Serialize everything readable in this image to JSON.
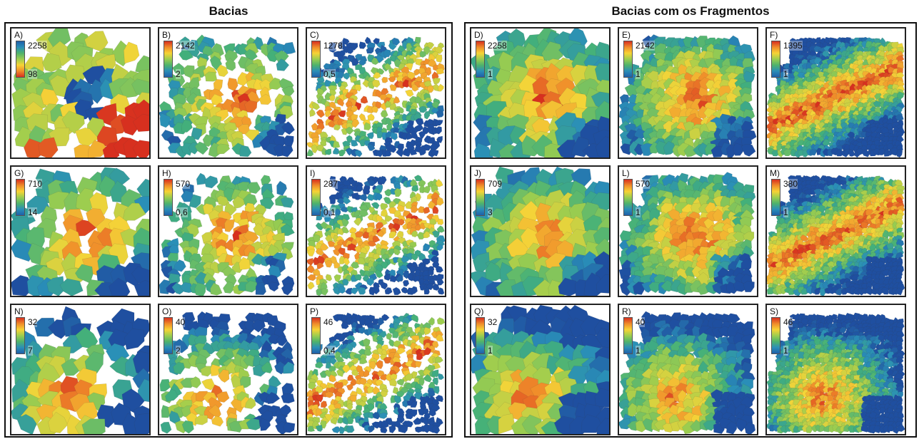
{
  "titles": {
    "left": "Bacias",
    "right": "Bacias com os Fragmentos"
  },
  "colors": {
    "scale_forward": [
      "#d7301f",
      "#f08c2a",
      "#f7d335",
      "#9ccd4f",
      "#4fb36b",
      "#2a8fb8",
      "#1f5fa8"
    ],
    "scale_reverse": [
      "#1f5fa8",
      "#2a8fb8",
      "#4fb36b",
      "#9ccd4f",
      "#f7d335",
      "#f08c2a",
      "#d7301f"
    ]
  },
  "panels": [
    {
      "letter": "A)",
      "max": "2258",
      "min": "98",
      "style": "basin-coarse",
      "legend": "reverse",
      "hot": "south"
    },
    {
      "letter": "B)",
      "max": "2142",
      "min": "2",
      "style": "basin-medium",
      "legend": "forward",
      "hot": "center"
    },
    {
      "letter": "C)",
      "max": "1278",
      "min": "0,5",
      "style": "basin-fine",
      "legend": "forward",
      "hot": "band"
    },
    {
      "letter": "D)",
      "max": "2258",
      "min": "1",
      "style": "full-coarse",
      "legend": "forward",
      "hot": "center"
    },
    {
      "letter": "E)",
      "max": "2142",
      "min": "1",
      "style": "full-medium",
      "legend": "forward",
      "hot": "center"
    },
    {
      "letter": "F)",
      "max": "1395",
      "min": "1",
      "style": "full-fine",
      "legend": "forward",
      "hot": "band"
    },
    {
      "letter": "G)",
      "max": "710",
      "min": "14",
      "style": "basin-coarse",
      "legend": "forward",
      "hot": "center"
    },
    {
      "letter": "H)",
      "max": "570",
      "min": "0,6",
      "style": "basin-medium",
      "legend": "forward",
      "hot": "center"
    },
    {
      "letter": "I)",
      "max": "287",
      "min": "0,1",
      "style": "basin-fine",
      "legend": "forward",
      "hot": "band"
    },
    {
      "letter": "J)",
      "max": "709",
      "min": "3",
      "style": "full-coarse",
      "legend": "forward",
      "hot": "center"
    },
    {
      "letter": "L)",
      "max": "570",
      "min": "1",
      "style": "full-medium",
      "legend": "forward",
      "hot": "center"
    },
    {
      "letter": "M)",
      "max": "380",
      "min": "1",
      "style": "full-fine",
      "legend": "forward",
      "hot": "band"
    },
    {
      "letter": "N)",
      "max": "32",
      "min": "7",
      "style": "basin-coarse",
      "legend": "forward",
      "hot": "southwest"
    },
    {
      "letter": "O)",
      "max": "40",
      "min": "2",
      "style": "basin-medium",
      "legend": "forward",
      "hot": "southwest"
    },
    {
      "letter": "P)",
      "max": "46",
      "min": "0,4",
      "style": "basin-fine",
      "legend": "forward",
      "hot": "band"
    },
    {
      "letter": "Q)",
      "max": "32",
      "min": "1",
      "style": "full-coarse",
      "legend": "forward",
      "hot": "southwest"
    },
    {
      "letter": "R)",
      "max": "40",
      "min": "1",
      "style": "full-medium",
      "legend": "forward",
      "hot": "southwest"
    },
    {
      "letter": "S)",
      "max": "46",
      "min": "1",
      "style": "full-fine",
      "legend": "forward",
      "hot": "southwest"
    }
  ]
}
